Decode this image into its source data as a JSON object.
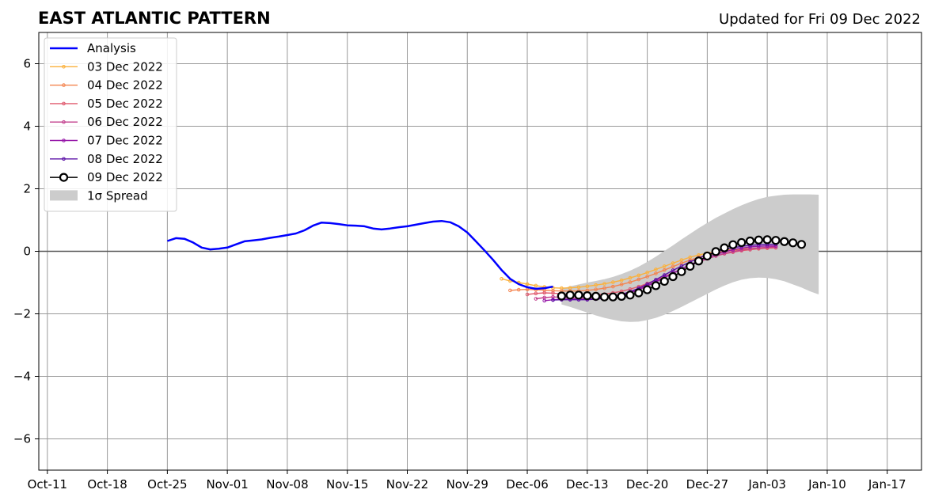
{
  "chart_data": {
    "type": "line",
    "title": "EAST ATLANTIC PATTERN",
    "subtitle": "Updated for Fri 09 Dec 2022",
    "ylim": [
      -7,
      7
    ],
    "xlim": [
      "2022-10-10",
      "2023-01-21"
    ],
    "grid": true,
    "legend_position": "top-left",
    "x_ticks": [
      "Oct-11",
      "Oct-18",
      "Oct-25",
      "Nov-01",
      "Nov-08",
      "Nov-15",
      "Nov-22",
      "Nov-29",
      "Dec-06",
      "Dec-13",
      "Dec-20",
      "Dec-27",
      "Jan-03",
      "Jan-10",
      "Jan-17"
    ],
    "x_tick_dates": [
      "2022-10-11",
      "2022-10-18",
      "2022-10-25",
      "2022-11-01",
      "2022-11-08",
      "2022-11-15",
      "2022-11-22",
      "2022-11-29",
      "2022-12-06",
      "2022-12-13",
      "2022-12-20",
      "2022-12-27",
      "2023-01-03",
      "2023-01-10",
      "2023-01-17"
    ],
    "y_ticks": [
      6,
      4,
      2,
      0,
      -2,
      -4,
      -6
    ],
    "y_tick_labels": [
      "6",
      "4",
      "2",
      "0",
      "−2",
      "−4",
      "−6"
    ],
    "analysis": {
      "name": "Analysis",
      "color": "#0000ff",
      "start": "2022-10-25",
      "values": [
        0.33,
        0.42,
        0.4,
        0.28,
        0.12,
        0.06,
        0.08,
        0.12,
        0.22,
        0.32,
        0.35,
        0.38,
        0.43,
        0.47,
        0.52,
        0.57,
        0.67,
        0.82,
        0.92,
        0.9,
        0.87,
        0.83,
        0.82,
        0.8,
        0.73,
        0.7,
        0.73,
        0.77,
        0.8,
        0.85,
        0.9,
        0.95,
        0.97,
        0.93,
        0.8,
        0.6,
        0.32,
        0.03,
        -0.27,
        -0.6,
        -0.88,
        -1.05,
        -1.15,
        -1.2,
        -1.18,
        -1.13
      ]
    },
    "forecasts": [
      {
        "name": "03 Dec 2022",
        "color": "#fbb13c",
        "start": "2022-12-03",
        "values": [
          -0.88,
          -0.95,
          -1.0,
          -1.05,
          -1.1,
          -1.14,
          -1.17,
          -1.18,
          -1.17,
          -1.15,
          -1.12,
          -1.08,
          -1.04,
          -0.99,
          -0.93,
          -0.85,
          -0.77,
          -0.68,
          -0.58,
          -0.48,
          -0.38,
          -0.28,
          -0.19,
          -0.12,
          -0.06,
          -0.01,
          0.03,
          0.06,
          0.08,
          0.09,
          0.1,
          0.1
        ]
      },
      {
        "name": "04 Dec 2022",
        "color": "#f4844f",
        "start": "2022-12-04",
        "values": [
          -1.25,
          -1.23,
          -1.22,
          -1.23,
          -1.24,
          -1.26,
          -1.27,
          -1.27,
          -1.27,
          -1.25,
          -1.22,
          -1.18,
          -1.13,
          -1.06,
          -0.99,
          -0.9,
          -0.81,
          -0.71,
          -0.6,
          -0.49,
          -0.38,
          -0.28,
          -0.19,
          -0.12,
          -0.06,
          -0.01,
          0.03,
          0.06,
          0.08,
          0.09,
          0.1
        ]
      },
      {
        "name": "05 Dec 2022",
        "color": "#e05a6e",
        "start": "2022-12-06",
        "values": [
          -1.38,
          -1.35,
          -1.33,
          -1.34,
          -1.36,
          -1.38,
          -1.4,
          -1.4,
          -1.39,
          -1.37,
          -1.33,
          -1.28,
          -1.21,
          -1.13,
          -1.03,
          -0.92,
          -0.81,
          -0.69,
          -0.57,
          -0.45,
          -0.34,
          -0.24,
          -0.15,
          -0.08,
          -0.03,
          0.02,
          0.05,
          0.08,
          0.1,
          0.11
        ]
      },
      {
        "name": "06 Dec 2022",
        "color": "#c2408e",
        "start": "2022-12-07",
        "values": [
          -1.52,
          -1.48,
          -1.46,
          -1.47,
          -1.49,
          -1.5,
          -1.51,
          -1.5,
          -1.48,
          -1.44,
          -1.38,
          -1.3,
          -1.2,
          -1.09,
          -0.96,
          -0.83,
          -0.7,
          -0.57,
          -0.45,
          -0.34,
          -0.24,
          -0.15,
          -0.07,
          -0.01,
          0.04,
          0.08,
          0.11,
          0.13,
          0.14
        ]
      },
      {
        "name": "07 Dec 2022",
        "color": "#9616a8",
        "start": "2022-12-08",
        "values": [
          -1.58,
          -1.55,
          -1.53,
          -1.53,
          -1.54,
          -1.54,
          -1.53,
          -1.51,
          -1.47,
          -1.41,
          -1.33,
          -1.23,
          -1.11,
          -0.98,
          -0.84,
          -0.7,
          -0.56,
          -0.43,
          -0.31,
          -0.2,
          -0.1,
          -0.02,
          0.05,
          0.1,
          0.14,
          0.16,
          0.17,
          0.17
        ]
      },
      {
        "name": "08 Dec 2022",
        "color": "#5a0fa6",
        "start": "2022-12-09",
        "values": [
          -1.56,
          -1.55,
          -1.55,
          -1.55,
          -1.55,
          -1.53,
          -1.5,
          -1.45,
          -1.38,
          -1.29,
          -1.18,
          -1.05,
          -0.91,
          -0.76,
          -0.61,
          -0.47,
          -0.34,
          -0.22,
          -0.11,
          -0.02,
          0.05,
          0.11,
          0.16,
          0.19,
          0.21,
          0.22,
          0.22
        ]
      }
    ],
    "main_forecast": {
      "name": "09 Dec 2022",
      "color": "#000000",
      "start": "2022-12-10",
      "values": [
        -1.43,
        -1.4,
        -1.4,
        -1.42,
        -1.44,
        -1.46,
        -1.46,
        -1.44,
        -1.4,
        -1.33,
        -1.23,
        -1.1,
        -0.96,
        -0.81,
        -0.65,
        -0.48,
        -0.31,
        -0.15,
        -0.01,
        0.11,
        0.21,
        0.28,
        0.33,
        0.36,
        0.37,
        0.35,
        0.31,
        0.27,
        0.22
      ]
    },
    "spread": {
      "name": "1σ Spread",
      "color": "#cccccc",
      "start": "2022-12-10",
      "upper": [
        -1.2,
        -1.12,
        -1.06,
        -1.0,
        -0.95,
        -0.89,
        -0.82,
        -0.73,
        -0.62,
        -0.49,
        -0.34,
        -0.17,
        0.01,
        0.19,
        0.38,
        0.56,
        0.74,
        0.91,
        1.07,
        1.21,
        1.35,
        1.47,
        1.58,
        1.67,
        1.74,
        1.78,
        1.81,
        1.82,
        1.82,
        1.82,
        1.81
      ],
      "lower": [
        -1.7,
        -1.78,
        -1.87,
        -1.96,
        -2.05,
        -2.13,
        -2.19,
        -2.24,
        -2.26,
        -2.25,
        -2.2,
        -2.13,
        -2.03,
        -1.91,
        -1.78,
        -1.64,
        -1.5,
        -1.36,
        -1.22,
        -1.1,
        -0.99,
        -0.91,
        -0.86,
        -0.84,
        -0.85,
        -0.89,
        -0.96,
        -1.06,
        -1.16,
        -1.28,
        -1.38
      ]
    },
    "legend": [
      "Analysis",
      "03 Dec 2022",
      "04 Dec 2022",
      "05 Dec 2022",
      "06 Dec 2022",
      "07 Dec 2022",
      "08 Dec 2022",
      "09 Dec 2022",
      "1σ Spread"
    ]
  }
}
